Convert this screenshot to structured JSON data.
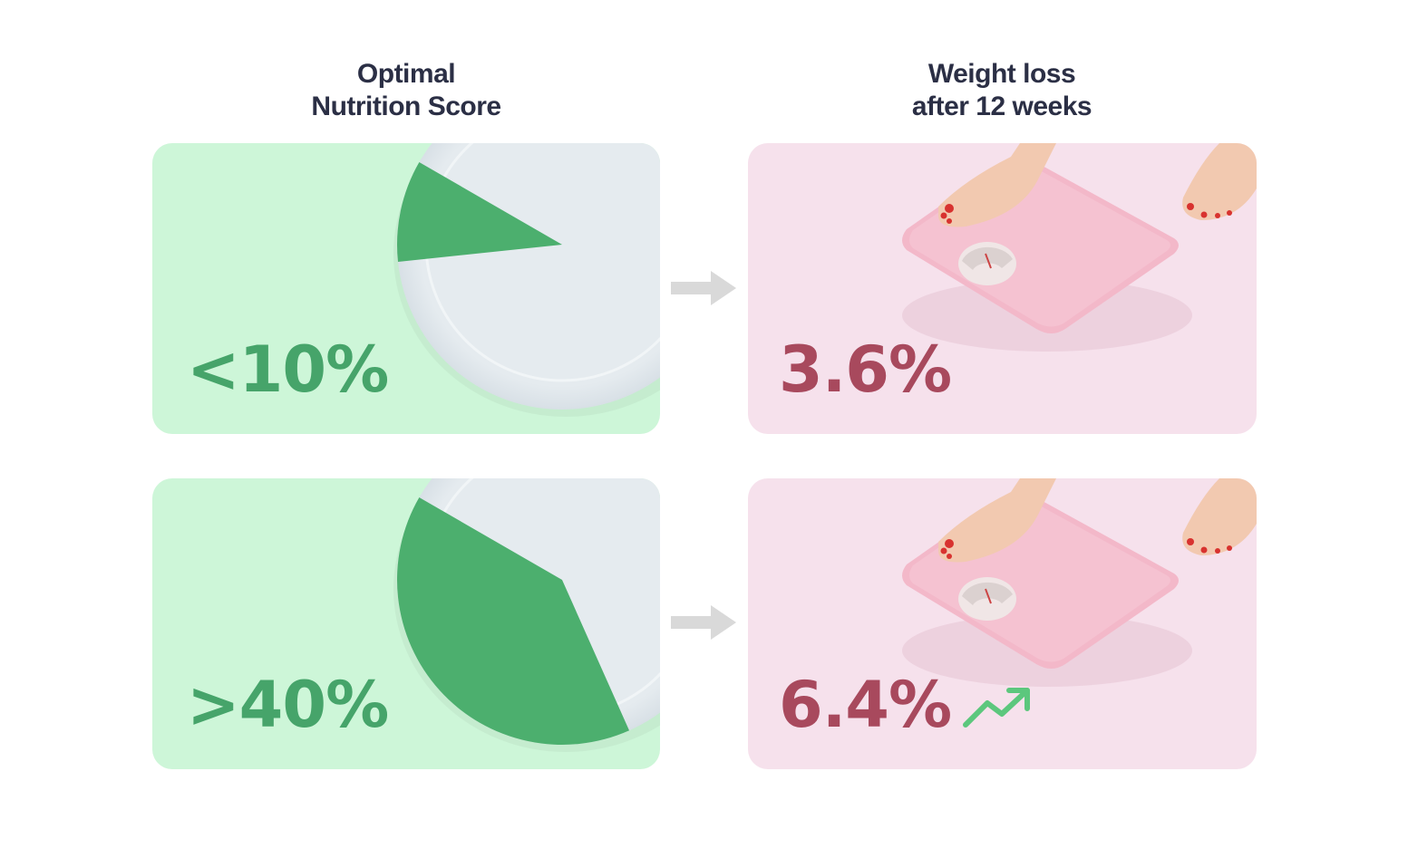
{
  "headers": {
    "left": [
      "Optimal",
      "Nutrition Score"
    ],
    "right": [
      "Weight loss",
      "after 12 weeks"
    ]
  },
  "rows": [
    {
      "nutrition_score": "<10%",
      "weight_loss": "3.6%",
      "plate_fill_fraction": 0.1,
      "trend_icon": "none"
    },
    {
      "nutrition_score": ">40%",
      "weight_loss": "6.4%",
      "plate_fill_fraction": 0.4,
      "trend_icon": "trending-up-icon"
    }
  ],
  "colors": {
    "green_card": "#cdf6d8",
    "green_fill": "#4caf6e",
    "pink_card": "#f6e1ec",
    "pink_text": "#a8495d",
    "heading": "#2b2f45",
    "arrow": "#d9d9d9",
    "trend": "#5cc77d"
  }
}
